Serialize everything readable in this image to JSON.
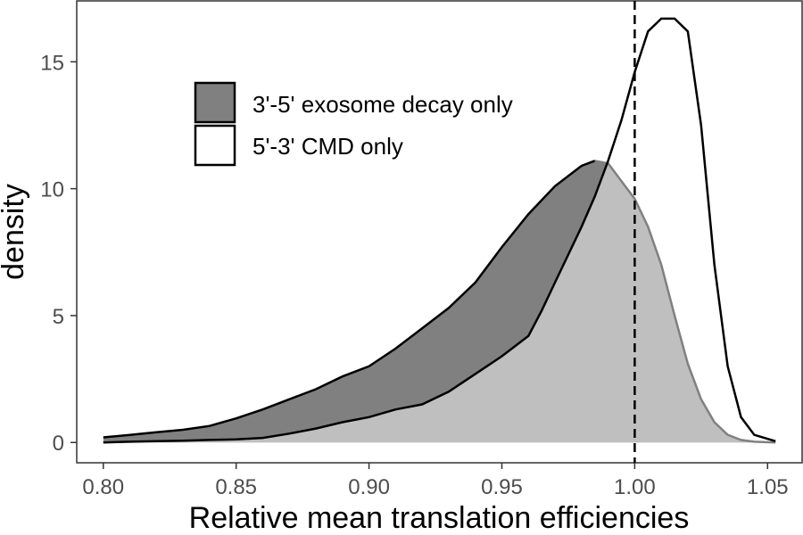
{
  "chart_data": {
    "type": "area",
    "xlabel": "Relative mean translation efficiencies",
    "ylabel": "density",
    "xlim": [
      0.79,
      1.063
    ],
    "ylim": [
      -0.8,
      17.4
    ],
    "x_ticks": [
      "0.80",
      "0.85",
      "0.90",
      "0.95",
      "1.00",
      "1.05"
    ],
    "y_ticks": [
      "0",
      "5",
      "10",
      "15"
    ],
    "reference_line": {
      "x": 1.0,
      "style": "dashed",
      "color": "#000000"
    },
    "grid": false,
    "legend": {
      "position": "top-left"
    },
    "series": [
      {
        "name": "3'-5' exosome decay only",
        "fill": "#808080",
        "stroke": "#000000",
        "points": [
          [
            0.8,
            0.2
          ],
          [
            0.81,
            0.3
          ],
          [
            0.82,
            0.4
          ],
          [
            0.83,
            0.5
          ],
          [
            0.84,
            0.65
          ],
          [
            0.85,
            0.95
          ],
          [
            0.86,
            1.3
          ],
          [
            0.87,
            1.7
          ],
          [
            0.88,
            2.1
          ],
          [
            0.89,
            2.6
          ],
          [
            0.9,
            3.0
          ],
          [
            0.91,
            3.7
          ],
          [
            0.92,
            4.5
          ],
          [
            0.93,
            5.3
          ],
          [
            0.94,
            6.3
          ],
          [
            0.95,
            7.7
          ],
          [
            0.96,
            9.0
          ],
          [
            0.97,
            10.1
          ],
          [
            0.98,
            10.9
          ],
          [
            0.985,
            11.1
          ],
          [
            0.99,
            11.0
          ],
          [
            1.0,
            9.6
          ],
          [
            1.005,
            8.5
          ],
          [
            1.01,
            7.0
          ],
          [
            1.015,
            5.0
          ],
          [
            1.02,
            3.1
          ],
          [
            1.025,
            1.7
          ],
          [
            1.03,
            0.8
          ],
          [
            1.035,
            0.3
          ],
          [
            1.04,
            0.1
          ],
          [
            1.045,
            0.03
          ],
          [
            1.053,
            0.0
          ]
        ]
      },
      {
        "name": "5'-3' CMD only",
        "fill": "#ffffff",
        "stroke": "#000000",
        "points": [
          [
            0.8,
            0.0
          ],
          [
            0.81,
            0.03
          ],
          [
            0.82,
            0.05
          ],
          [
            0.83,
            0.07
          ],
          [
            0.84,
            0.1
          ],
          [
            0.85,
            0.12
          ],
          [
            0.86,
            0.18
          ],
          [
            0.87,
            0.35
          ],
          [
            0.88,
            0.55
          ],
          [
            0.89,
            0.8
          ],
          [
            0.9,
            1.0
          ],
          [
            0.91,
            1.3
          ],
          [
            0.92,
            1.5
          ],
          [
            0.93,
            2.0
          ],
          [
            0.94,
            2.7
          ],
          [
            0.95,
            3.4
          ],
          [
            0.955,
            3.8
          ],
          [
            0.96,
            4.2
          ],
          [
            0.965,
            5.2
          ],
          [
            0.97,
            6.3
          ],
          [
            0.975,
            7.4
          ],
          [
            0.98,
            8.5
          ],
          [
            0.985,
            9.7
          ],
          [
            0.99,
            11.1
          ],
          [
            0.995,
            12.7
          ],
          [
            1.0,
            14.6
          ],
          [
            1.005,
            16.2
          ],
          [
            1.01,
            16.7
          ],
          [
            1.015,
            16.7
          ],
          [
            1.02,
            16.2
          ],
          [
            1.025,
            12.5
          ],
          [
            1.03,
            7.0
          ],
          [
            1.035,
            3.0
          ],
          [
            1.04,
            1.0
          ],
          [
            1.045,
            0.3
          ],
          [
            1.053,
            0.05
          ]
        ]
      }
    ],
    "overlap_fill": "#bfbfbf",
    "overlap_edge": "#808080"
  }
}
